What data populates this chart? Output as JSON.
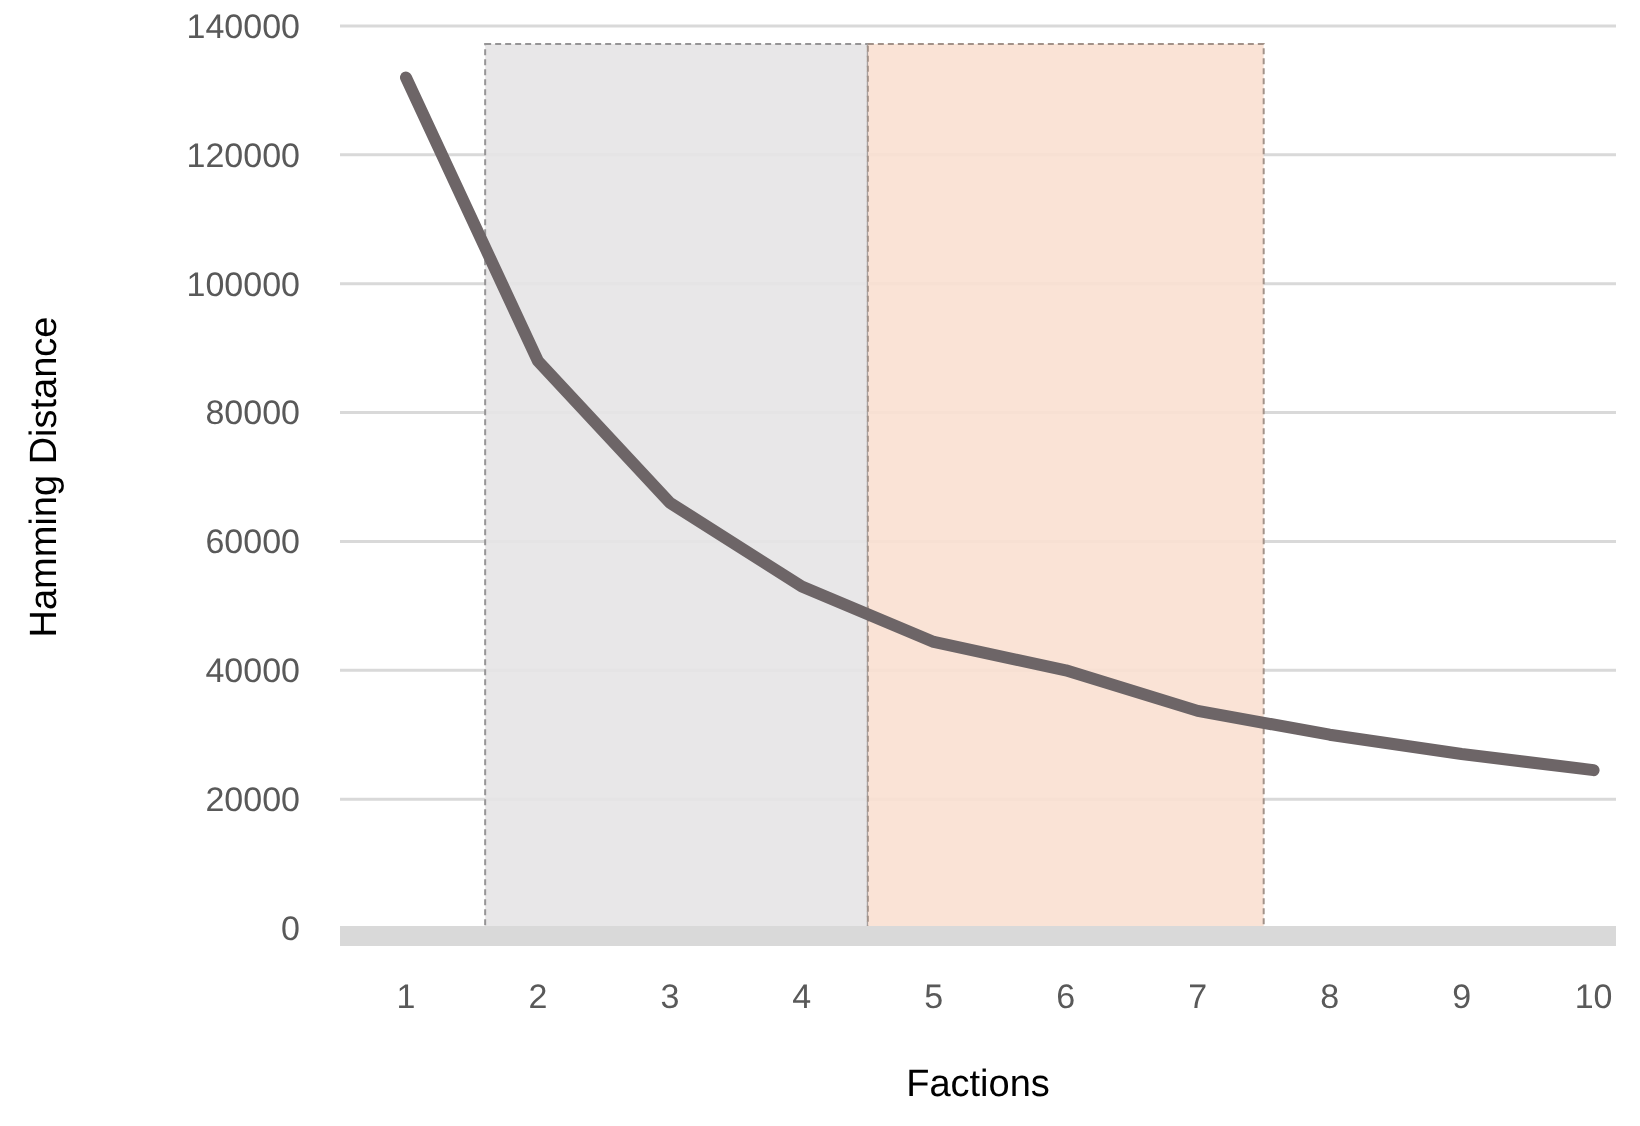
{
  "chart_data": {
    "type": "line",
    "xlabel": "Factions",
    "ylabel": "Hamming Distance",
    "x": [
      1,
      2,
      3,
      4,
      5,
      6,
      7,
      8,
      9,
      10
    ],
    "series": [
      {
        "color": "#6d6567",
        "values": [
          132000,
          88000,
          66000,
          53000,
          44400,
          40000,
          33700,
          30000,
          27000,
          24500
        ]
      }
    ],
    "xlim": [
      0.5,
      10.17
    ],
    "xticks": [
      1,
      2,
      3,
      4,
      5,
      6,
      7,
      8,
      9,
      10
    ],
    "ylim": [
      0,
      140000
    ],
    "yticks": [
      0,
      20000,
      40000,
      60000,
      80000,
      100000,
      120000,
      140000
    ],
    "grid": "y",
    "marker": "none",
    "line_style": "solid",
    "bands": [
      {
        "axis": "x",
        "from": 1.6,
        "to": 4.5,
        "color": "#e6e4e6"
      },
      {
        "axis": "x",
        "from": 4.5,
        "to": 7.5,
        "color": "#f9e0d2"
      }
    ]
  }
}
